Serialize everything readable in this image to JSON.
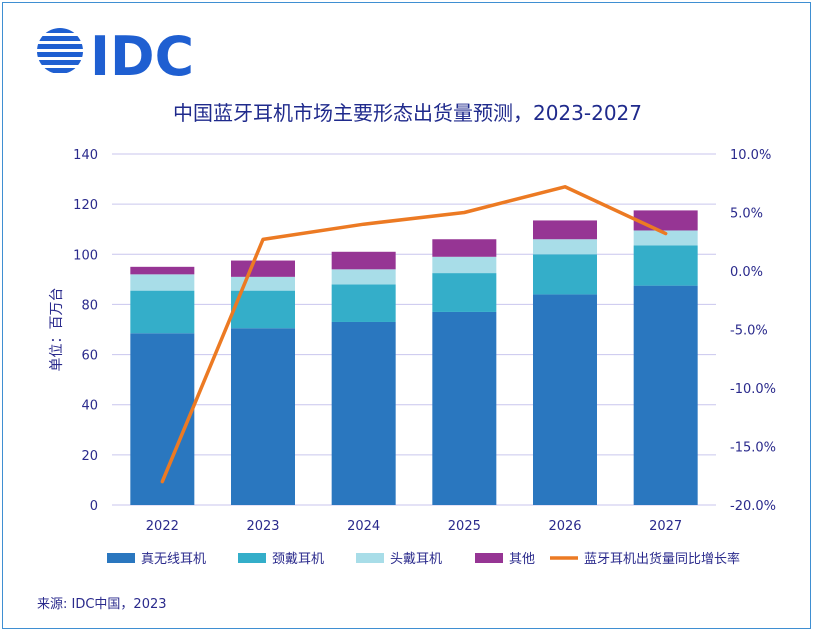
{
  "logo": {
    "text": "IDC",
    "color": "#1f5fd1"
  },
  "title": "中国蓝牙耳机市场主要形态出货量预测，2023-2027",
  "source": "来源: IDC中国，2023",
  "chart_data": {
    "type": "bar",
    "stacked": true,
    "categories": [
      "2022",
      "2023",
      "2024",
      "2025",
      "2026",
      "2027"
    ],
    "ylabel": "单位：百万台",
    "ylim": [
      0,
      140
    ],
    "yticks": [
      "0",
      "20",
      "40",
      "60",
      "80",
      "100",
      "120",
      "140"
    ],
    "y2lim": [
      -20,
      10
    ],
    "y2ticks": [
      "-20.0%",
      "-15.0%",
      "-10.0%",
      "-5.0%",
      "0.0%",
      "5.0%",
      "10.0%"
    ],
    "grid": true,
    "legend_position": "bottom",
    "series": [
      {
        "name": "真无线耳机",
        "color": "#2a77bf",
        "values": [
          68.5,
          70.5,
          73,
          77,
          84,
          87.5
        ]
      },
      {
        "name": "颈戴耳机",
        "color": "#34aec9",
        "values": [
          17,
          15,
          15,
          15.5,
          16,
          16
        ]
      },
      {
        "name": "头戴耳机",
        "color": "#a8dde8",
        "values": [
          6.5,
          5.5,
          6,
          6.5,
          6,
          6
        ]
      },
      {
        "name": "其他",
        "color": "#963594",
        "values": [
          3,
          6.5,
          7,
          7,
          7.5,
          8
        ]
      }
    ],
    "line_series": {
      "name": "蓝牙耳机出货量同比增长率",
      "color": "#ec7a23",
      "axis": "right",
      "values": [
        -18.0,
        2.7,
        4.0,
        5.0,
        7.2,
        3.2
      ]
    }
  }
}
